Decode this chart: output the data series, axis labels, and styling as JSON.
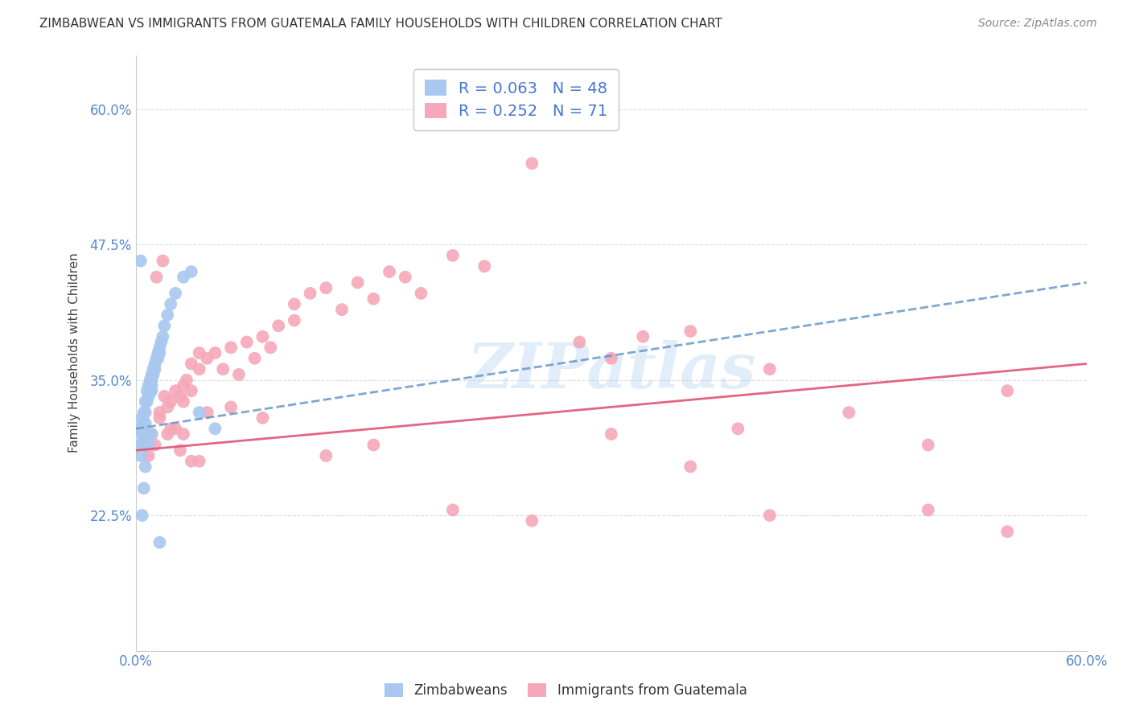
{
  "title": "ZIMBABWEAN VS IMMIGRANTS FROM GUATEMALA FAMILY HOUSEHOLDS WITH CHILDREN CORRELATION CHART",
  "source": "Source: ZipAtlas.com",
  "ylabel": "Family Households with Children",
  "ytick_values": [
    22.5,
    35.0,
    47.5,
    60.0
  ],
  "xmin": 0.0,
  "xmax": 60.0,
  "ymin": 10.0,
  "ymax": 65.0,
  "legend1_R": "0.063",
  "legend1_N": "48",
  "legend2_R": "0.252",
  "legend2_N": "71",
  "blue_color": "#a8c8f0",
  "pink_color": "#f5a8b8",
  "trendline_blue_color": "#6699cc",
  "trendline_pink_color": "#e05575",
  "watermark": "ZIPatlas",
  "background_color": "#ffffff",
  "grid_color": "#dddddd",
  "zim_x": [
    0.2,
    0.3,
    0.3,
    0.4,
    0.4,
    0.5,
    0.5,
    0.5,
    0.5,
    0.6,
    0.6,
    0.6,
    0.7,
    0.7,
    0.8,
    0.8,
    0.9,
    0.9,
    1.0,
    1.0,
    1.0,
    1.0,
    1.1,
    1.1,
    1.2,
    1.2,
    1.3,
    1.4,
    1.4,
    1.5,
    1.5,
    1.6,
    1.7,
    1.8,
    2.0,
    2.2,
    2.5,
    3.0,
    3.5,
    4.0,
    5.0,
    0.3,
    0.4,
    0.5,
    0.6,
    0.8,
    1.0,
    1.5
  ],
  "zim_y": [
    30.5,
    29.0,
    28.0,
    31.5,
    30.0,
    32.0,
    31.0,
    30.0,
    29.0,
    33.0,
    32.0,
    31.0,
    34.0,
    33.0,
    34.5,
    33.5,
    35.0,
    34.0,
    35.5,
    35.0,
    34.5,
    34.0,
    36.0,
    35.5,
    36.5,
    36.0,
    37.0,
    37.5,
    37.0,
    38.0,
    37.5,
    38.5,
    39.0,
    40.0,
    41.0,
    42.0,
    43.0,
    44.5,
    45.0,
    32.0,
    30.5,
    46.0,
    22.5,
    25.0,
    27.0,
    29.0,
    30.0,
    20.0
  ],
  "guat_x": [
    0.5,
    0.8,
    1.0,
    1.2,
    1.5,
    1.5,
    1.8,
    2.0,
    2.0,
    2.2,
    2.5,
    2.5,
    2.8,
    3.0,
    3.0,
    3.2,
    3.5,
    3.5,
    4.0,
    4.0,
    4.5,
    5.0,
    5.5,
    6.0,
    6.5,
    7.0,
    7.5,
    8.0,
    8.5,
    9.0,
    10.0,
    10.0,
    11.0,
    12.0,
    13.0,
    14.0,
    15.0,
    16.0,
    17.0,
    18.0,
    20.0,
    22.0,
    25.0,
    28.0,
    30.0,
    32.0,
    35.0,
    38.0,
    40.0,
    45.0,
    50.0,
    55.0,
    1.3,
    1.7,
    2.2,
    2.8,
    3.5,
    4.5,
    6.0,
    8.0,
    12.0,
    15.0,
    20.0,
    25.0,
    30.0,
    35.0,
    40.0,
    50.0,
    55.0,
    3.0,
    4.0
  ],
  "guat_y": [
    29.5,
    28.0,
    30.0,
    29.0,
    31.5,
    32.0,
    33.5,
    30.0,
    32.5,
    33.0,
    34.0,
    30.5,
    33.5,
    34.5,
    33.0,
    35.0,
    36.5,
    34.0,
    36.0,
    37.5,
    37.0,
    37.5,
    36.0,
    38.0,
    35.5,
    38.5,
    37.0,
    39.0,
    38.0,
    40.0,
    42.0,
    40.5,
    43.0,
    43.5,
    41.5,
    44.0,
    42.5,
    45.0,
    44.5,
    43.0,
    46.5,
    45.5,
    55.0,
    38.5,
    37.0,
    39.0,
    39.5,
    30.5,
    36.0,
    32.0,
    29.0,
    34.0,
    44.5,
    46.0,
    30.5,
    28.5,
    27.5,
    32.0,
    32.5,
    31.5,
    28.0,
    29.0,
    23.0,
    22.0,
    30.0,
    27.0,
    22.5,
    23.0,
    21.0,
    30.0,
    27.5
  ]
}
